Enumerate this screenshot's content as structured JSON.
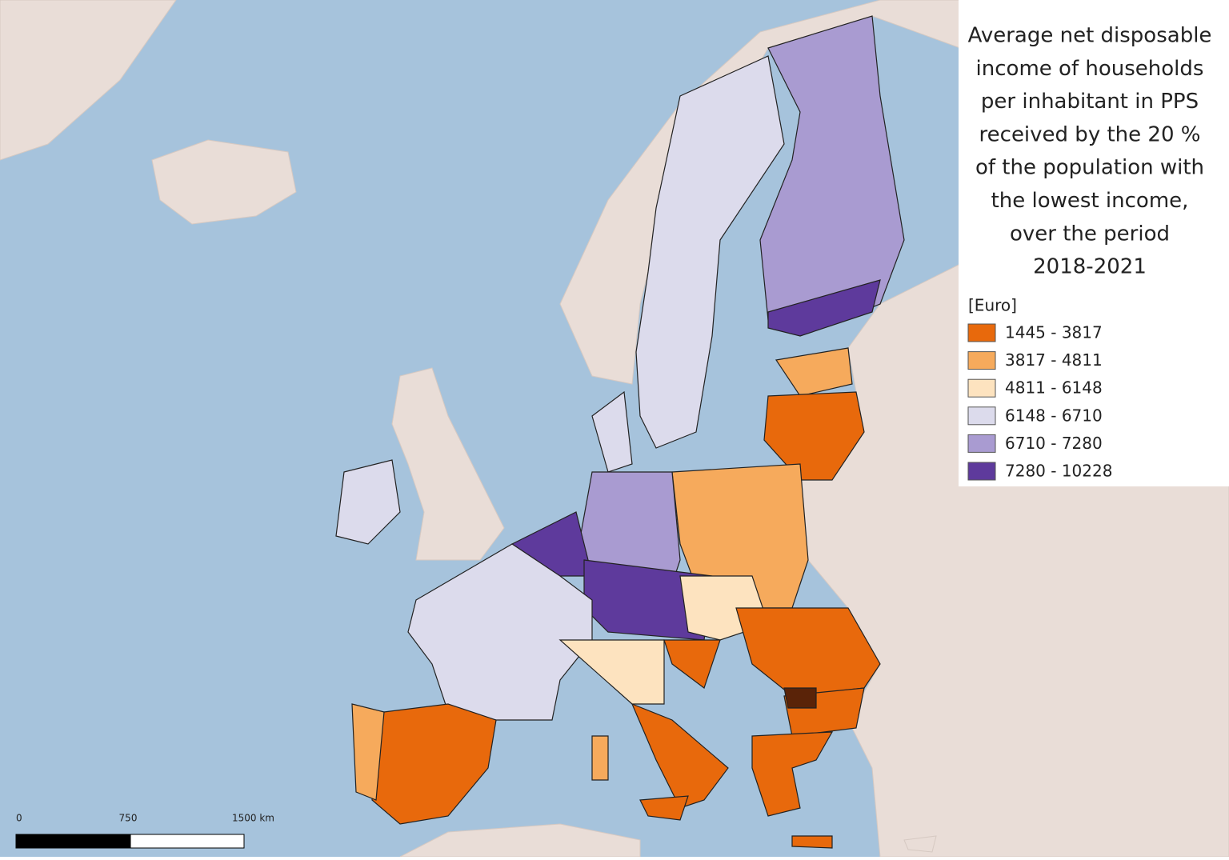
{
  "title_lines": [
    "Average net disposable",
    "income of households",
    "per inhabitant in PPS",
    "received by the 20 %",
    "of the  population with",
    "the lowest income,",
    "over the period",
    "2018-2021"
  ],
  "legend": {
    "unit": "[Euro]",
    "items": [
      {
        "label": "1445 - 3817",
        "color": "#e8690c"
      },
      {
        "label": "3817 - 4811",
        "color": "#f6aa5c"
      },
      {
        "label": "4811 - 6148",
        "color": "#fde3bf"
      },
      {
        "label": "6148 - 6710",
        "color": "#dcdbec"
      },
      {
        "label": "6710 - 7280",
        "color": "#a99bd1"
      },
      {
        "label": "7280 - 10228",
        "color": "#5e3a9c"
      }
    ]
  },
  "scale_bar": {
    "labels": [
      "0",
      "750",
      "1500 km"
    ]
  }
}
